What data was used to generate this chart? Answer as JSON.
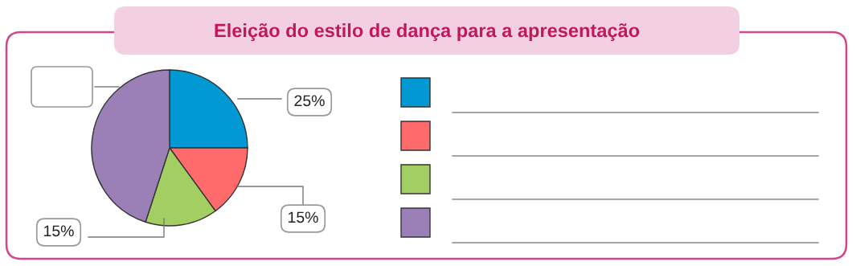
{
  "chart_data": {
    "type": "pie",
    "title": "Eleição do estilo de dança para a apresentação",
    "categories": [
      null,
      null,
      null,
      null
    ],
    "values": [
      25,
      15,
      15,
      45
    ],
    "colors": [
      "#0099d4",
      "#ff6b6b",
      "#a3cf62",
      "#9b80b8"
    ],
    "value_labels": [
      "25%",
      "15%",
      "15%",
      null
    ]
  }
}
